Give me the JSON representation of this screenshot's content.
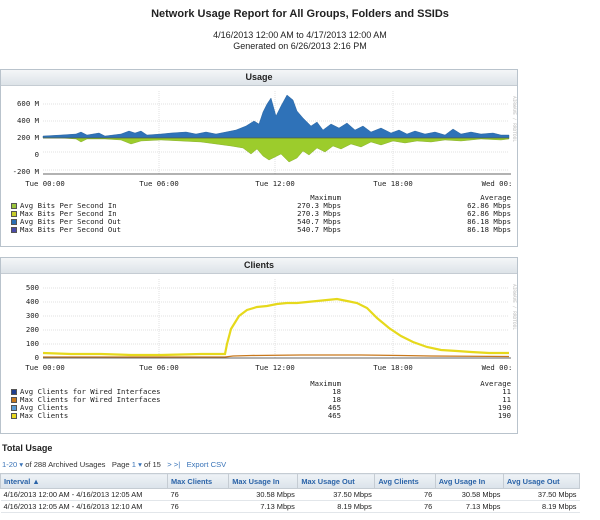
{
  "report": {
    "title": "Network Usage Report for All Groups, Folders and SSIDs",
    "range": "4/16/2013 12:00 AM to 4/17/2013 12:00 AM",
    "generated": "Generated on 6/26/2013 2:16 PM"
  },
  "usage": {
    "panel_title": "Usage",
    "side_label": "AIRWAVE / RRDTOOL",
    "y_ticks": [
      "600 M",
      "400 M",
      "200 M",
      "0",
      "-200 M"
    ],
    "x_ticks": [
      "Tue 00:00",
      "Tue 06:00",
      "Tue 12:00",
      "Tue 18:00",
      "Wed 00:"
    ],
    "legend_headers": {
      "max": "Maximum",
      "avg": "Average"
    },
    "legend": [
      {
        "name": "Avg Bits Per Second In",
        "max": "270.3 Mbps",
        "avg": "62.86 Mbps",
        "color": "#9bc53d"
      },
      {
        "name": "Max Bits Per Second In",
        "max": "270.3 Mbps",
        "avg": "62.86 Mbps",
        "color": "#c7cc2a"
      },
      {
        "name": "Avg Bits Per Second Out",
        "max": "540.7 Mbps",
        "avg": "86.18 Mbps",
        "color": "#2a6fb5"
      },
      {
        "name": "Max Bits Per Second Out",
        "max": "540.7 Mbps",
        "avg": "86.18 Mbps",
        "color": "#4a4aa8"
      }
    ],
    "colors": {
      "out": "#2f72b8",
      "in": "#9ccc2c",
      "in_dark": "#7ea621"
    }
  },
  "clients": {
    "panel_title": "Clients",
    "side_label": "AIRWAVE / RRDTOOL",
    "y_ticks": [
      "500",
      "400",
      "300",
      "200",
      "100",
      "0"
    ],
    "x_ticks": [
      "Tue 00:00",
      "Tue 06:00",
      "Tue 12:00",
      "Tue 18:00",
      "Wed 00:"
    ],
    "legend_headers": {
      "max": "Maximum",
      "avg": "Average"
    },
    "legend": [
      {
        "name": "Avg Clients for Wired Interfaces",
        "max": "18",
        "avg": "11",
        "color": "#1f3f8f"
      },
      {
        "name": "Max Clients for Wired Interfaces",
        "max": "18",
        "avg": "11",
        "color": "#c8781c"
      },
      {
        "name": "Avg Clients",
        "max": "465",
        "avg": "190",
        "color": "#5a9bd6"
      },
      {
        "name": "Max Clients",
        "max": "465",
        "avg": "190",
        "color": "#e8d820"
      }
    ],
    "colors": {
      "clients": "#e6d91c",
      "wired": "#c8781c"
    }
  },
  "total": {
    "title": "Total Usage",
    "pager": {
      "range_link": "1-20",
      "of_text": "of 288 Archived Usages",
      "page_label": "Page",
      "current_page": "1",
      "of_pages": "of 15",
      "next": ">",
      "last": ">|",
      "export": "Export CSV"
    },
    "columns": [
      "Interval",
      "Max Clients",
      "Max Usage In",
      "Max Usage Out",
      "Avg Clients",
      "Avg Usage In",
      "Avg Usage Out"
    ],
    "rows": [
      [
        "4/16/2013 12:00 AM - 4/16/2013 12:05 AM",
        "76",
        "30.58 Mbps",
        "37.50 Mbps",
        "76",
        "30.58 Mbps",
        "37.50 Mbps"
      ],
      [
        "4/16/2013 12:05 AM - 4/16/2013 12:10 AM",
        "76",
        "7.13 Mbps",
        "8.19 Mbps",
        "76",
        "7.13 Mbps",
        "8.19 Mbps"
      ]
    ]
  }
}
